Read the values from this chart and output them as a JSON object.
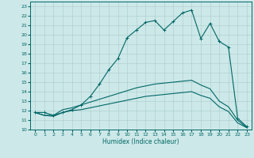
{
  "xlabel": "Humidex (Indice chaleur)",
  "bg_color": "#cde8e8",
  "grid_color": "#aacccc",
  "line_color": "#006666",
  "xlim": [
    -0.5,
    23.5
  ],
  "ylim": [
    10,
    23.5
  ],
  "xticks": [
    0,
    1,
    2,
    3,
    4,
    5,
    6,
    7,
    8,
    9,
    10,
    11,
    12,
    13,
    14,
    15,
    16,
    17,
    18,
    19,
    20,
    21,
    22,
    23
  ],
  "yticks": [
    10,
    11,
    12,
    13,
    14,
    15,
    16,
    17,
    18,
    19,
    20,
    21,
    22,
    23
  ],
  "curve1_x": [
    0,
    1,
    2,
    3,
    4,
    5,
    6,
    7,
    8,
    9,
    10,
    11,
    12,
    13,
    14,
    15,
    16,
    17,
    18,
    19,
    20,
    21,
    22,
    23
  ],
  "curve1_y": [
    11.8,
    11.8,
    11.5,
    11.8,
    12.1,
    12.6,
    13.5,
    14.8,
    16.3,
    17.5,
    19.7,
    20.5,
    21.3,
    21.5,
    20.5,
    21.4,
    22.3,
    22.6,
    19.6,
    21.2,
    19.3,
    18.7,
    11.2,
    10.3
  ],
  "curve2_x": [
    0,
    1,
    2,
    3,
    4,
    5,
    6,
    7,
    8,
    9,
    10,
    11,
    12,
    13,
    14,
    15,
    16,
    17,
    18,
    19,
    20,
    21,
    22,
    23
  ],
  "curve2_y": [
    11.8,
    11.5,
    11.5,
    12.1,
    12.3,
    12.6,
    12.9,
    13.2,
    13.5,
    13.8,
    14.1,
    14.4,
    14.6,
    14.8,
    14.9,
    15.0,
    15.1,
    15.2,
    14.7,
    14.3,
    13.0,
    12.4,
    11.0,
    10.2
  ],
  "curve3_x": [
    0,
    1,
    2,
    3,
    4,
    5,
    6,
    7,
    8,
    9,
    10,
    11,
    12,
    13,
    14,
    15,
    16,
    17,
    18,
    19,
    20,
    21,
    22,
    23
  ],
  "curve3_y": [
    11.8,
    11.5,
    11.4,
    11.8,
    12.0,
    12.1,
    12.3,
    12.5,
    12.7,
    12.9,
    13.1,
    13.3,
    13.5,
    13.6,
    13.7,
    13.8,
    13.9,
    14.0,
    13.6,
    13.3,
    12.4,
    11.9,
    10.7,
    10.2
  ]
}
